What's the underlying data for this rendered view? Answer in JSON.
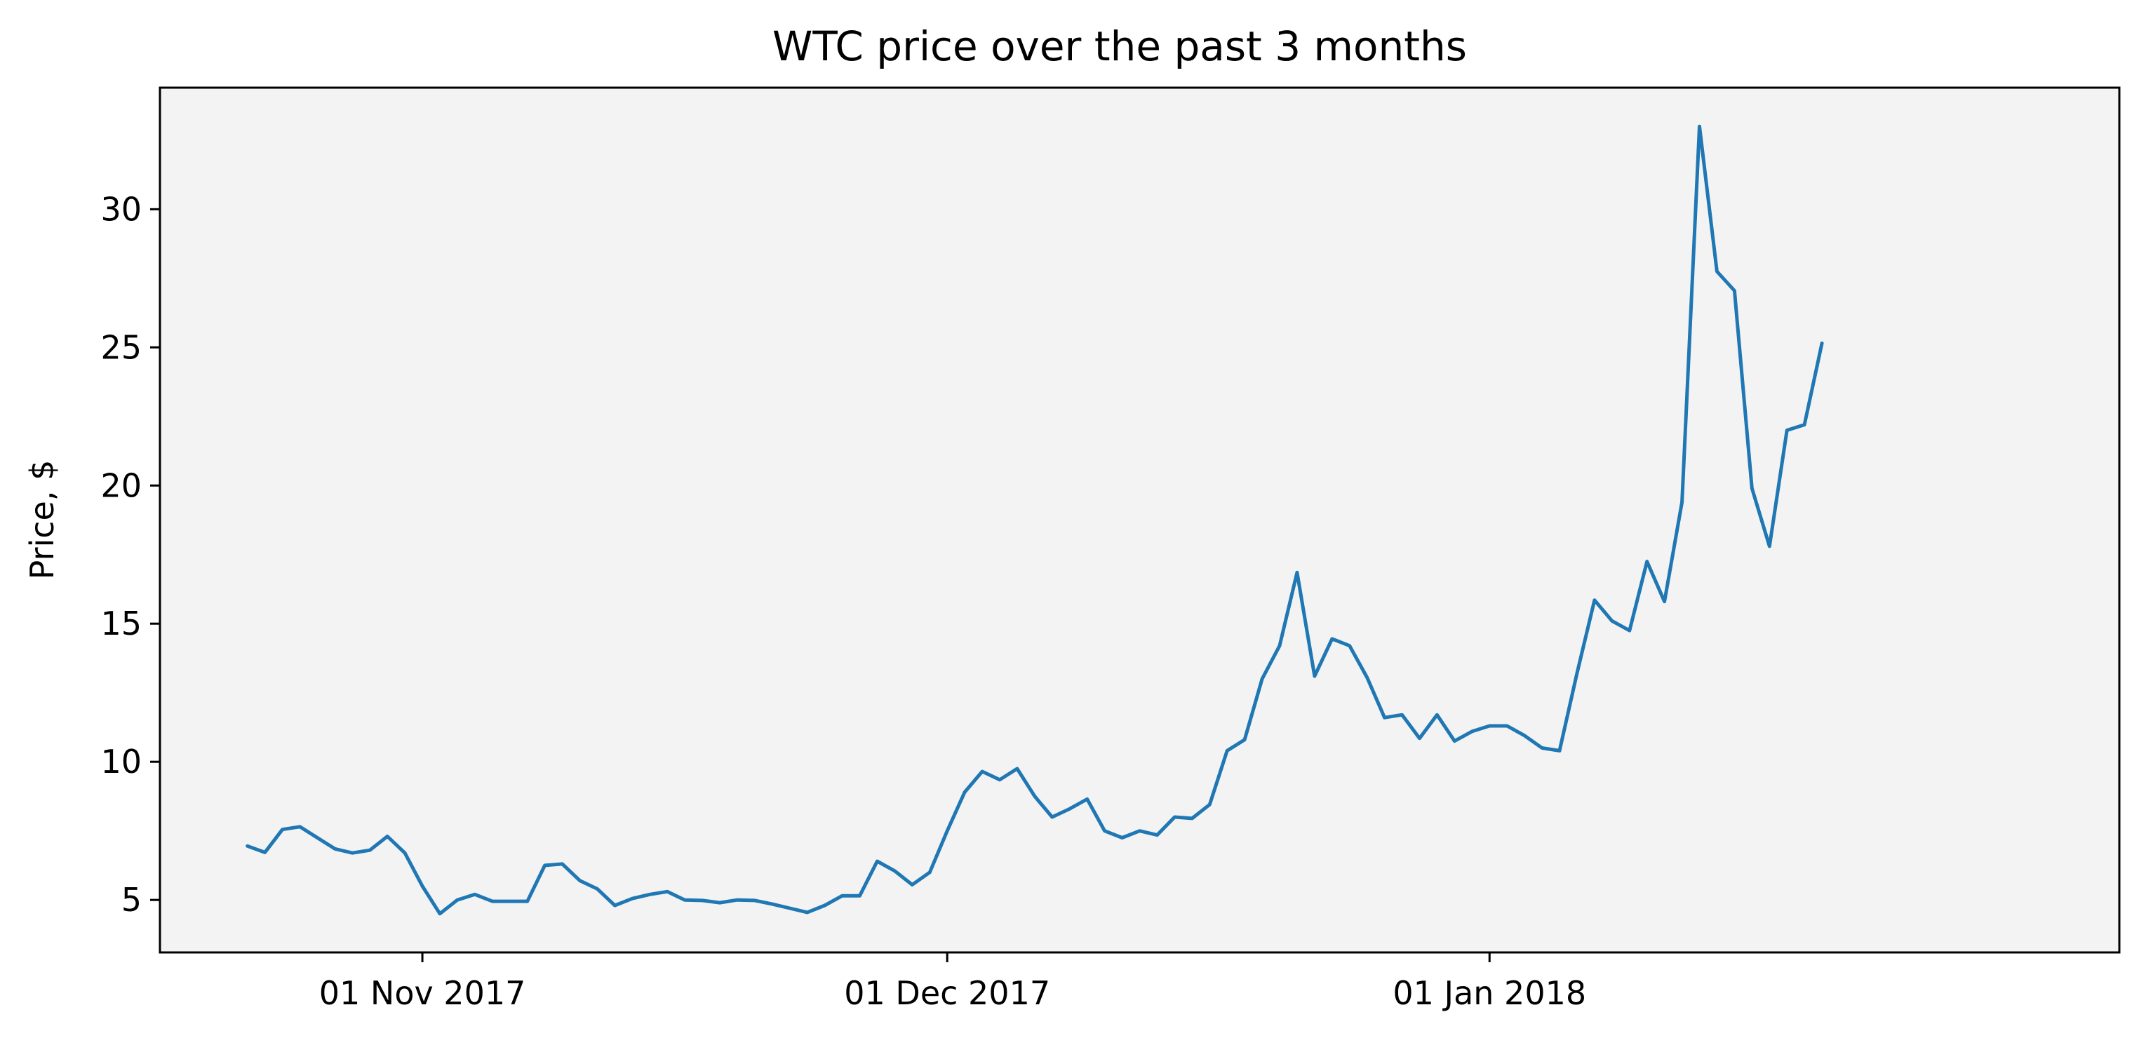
{
  "chart_data": {
    "type": "line",
    "title": "WTC price over the past 3 months",
    "xlabel": "",
    "ylabel": "Price, $",
    "x_tick_labels": [
      {
        "label": "01 Nov 2017",
        "date": "2017-11-01"
      },
      {
        "label": "01 Dec 2017",
        "date": "2017-12-01"
      },
      {
        "label": "01 Jan 2018",
        "date": "2018-01-01"
      }
    ],
    "y_ticks": [
      5,
      10,
      15,
      20,
      25,
      30
    ],
    "xlim": [
      "2017-10-17",
      "2018-02-06"
    ],
    "ylim": [
      3.1,
      34.4
    ],
    "grid": false,
    "colors": {
      "line": "#1f77b4",
      "plot_bg": "#f3f3f3",
      "axes": "#000000"
    },
    "series": [
      {
        "x": [
          "2017-10-22",
          "2017-10-23",
          "2017-10-24",
          "2017-10-25",
          "2017-10-26",
          "2017-10-27",
          "2017-10-28",
          "2017-10-29",
          "2017-10-30",
          "2017-10-31",
          "2017-11-01",
          "2017-11-02",
          "2017-11-03",
          "2017-11-04",
          "2017-11-05",
          "2017-11-06",
          "2017-11-07",
          "2017-11-08",
          "2017-11-09",
          "2017-11-10",
          "2017-11-11",
          "2017-11-12",
          "2017-11-13",
          "2017-11-14",
          "2017-11-15",
          "2017-11-16",
          "2017-11-17",
          "2017-11-18",
          "2017-11-19",
          "2017-11-20",
          "2017-11-21",
          "2017-11-22",
          "2017-11-23",
          "2017-11-24",
          "2017-11-25",
          "2017-11-26",
          "2017-11-27",
          "2017-11-28",
          "2017-11-29",
          "2017-11-30",
          "2017-12-01",
          "2017-12-02",
          "2017-12-03",
          "2017-12-04",
          "2017-12-05",
          "2017-12-06",
          "2017-12-07",
          "2017-12-08",
          "2017-12-09",
          "2017-12-10",
          "2017-12-11",
          "2017-12-12",
          "2017-12-13",
          "2017-12-14",
          "2017-12-15",
          "2017-12-16",
          "2017-12-17",
          "2017-12-18",
          "2017-12-19",
          "2017-12-20",
          "2017-12-21",
          "2017-12-22",
          "2017-12-23",
          "2017-12-24",
          "2017-12-25",
          "2017-12-26",
          "2017-12-27",
          "2017-12-28",
          "2017-12-29",
          "2017-12-30",
          "2017-12-31",
          "2018-01-01",
          "2018-01-02",
          "2018-01-03",
          "2018-01-04",
          "2018-01-05",
          "2018-01-06",
          "2018-01-07",
          "2018-01-08",
          "2018-01-09",
          "2018-01-10",
          "2018-01-11",
          "2018-01-12",
          "2018-01-13",
          "2018-01-14",
          "2018-01-15",
          "2018-01-16",
          "2018-01-17",
          "2018-01-18",
          "2018-01-19",
          "2018-01-20",
          "2018-01-21"
        ],
        "y": [
          6.95,
          6.72,
          7.55,
          7.65,
          7.25,
          6.85,
          6.7,
          6.8,
          7.3,
          6.7,
          5.5,
          4.5,
          5.0,
          5.2,
          4.95,
          4.95,
          4.95,
          6.25,
          6.3,
          5.7,
          5.4,
          4.8,
          5.05,
          5.2,
          5.3,
          5.0,
          4.98,
          4.9,
          5.0,
          4.98,
          4.85,
          4.7,
          4.55,
          4.8,
          5.15,
          5.15,
          6.4,
          6.05,
          5.55,
          6.0,
          7.5,
          8.9,
          9.65,
          9.35,
          9.75,
          8.75,
          8.0,
          8.3,
          8.65,
          7.5,
          7.25,
          7.5,
          7.35,
          8.0,
          7.95,
          8.45,
          10.4,
          10.8,
          13.0,
          14.2,
          16.85,
          13.1,
          14.45,
          14.2,
          13.05,
          11.6,
          11.7,
          10.85,
          11.7,
          10.75,
          11.1,
          11.3,
          11.3,
          10.95,
          10.5,
          10.4,
          13.2,
          15.85,
          15.1,
          14.75,
          17.25,
          15.8,
          19.4,
          33.0,
          27.75,
          27.05,
          19.9,
          17.8,
          22.0,
          22.2,
          25.15,
          null
        ]
      }
    ]
  }
}
